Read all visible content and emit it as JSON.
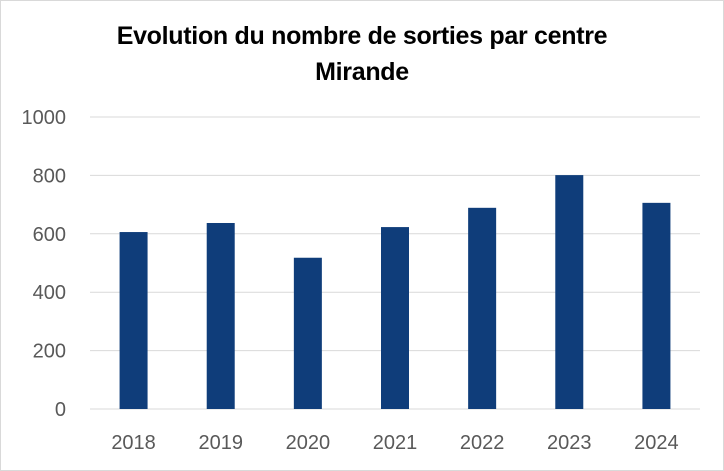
{
  "chart_data": {
    "type": "bar",
    "title_lines": [
      "Evolution du nombre de sorties par centre",
      "Mirande"
    ],
    "xlabel": "",
    "ylabel": "",
    "categories": [
      "2018",
      "2019",
      "2020",
      "2021",
      "2022",
      "2023",
      "2024"
    ],
    "values": [
      606,
      637,
      518,
      623,
      689,
      801,
      706
    ],
    "ylim": [
      0,
      1000
    ],
    "yticks": [
      0,
      200,
      400,
      600,
      800,
      1000
    ],
    "grid": true,
    "legend": "none",
    "bar_color": "#0f3d7a",
    "grid_color": "#d9d9d9"
  }
}
